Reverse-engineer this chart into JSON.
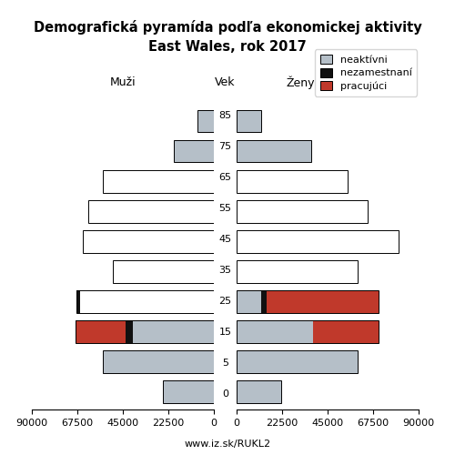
{
  "title_line1": "Demografická pyramída podľa ekonomickej aktivity",
  "title_line2": "East Wales, rok 2017",
  "label_muzi": "Muži",
  "label_vek": "Vek",
  "label_zeny": "Ženy",
  "footer": "www.iz.sk/RUKL2",
  "age_groups": [
    0,
    5,
    15,
    25,
    35,
    45,
    55,
    65,
    75,
    85
  ],
  "males_inactive": [
    25000,
    55000,
    40000,
    66000,
    50000,
    65000,
    62000,
    55000,
    20000,
    8000
  ],
  "males_unemployed": [
    0,
    0,
    3500,
    2000,
    0,
    0,
    0,
    0,
    0,
    0
  ],
  "males_employed": [
    0,
    0,
    25000,
    0,
    0,
    0,
    0,
    0,
    0,
    0
  ],
  "females_inactive": [
    22000,
    60000,
    38000,
    12000,
    60000,
    80000,
    65000,
    55000,
    37000,
    12000
  ],
  "females_unemployed": [
    0,
    0,
    0,
    3000,
    0,
    0,
    0,
    0,
    0,
    0
  ],
  "females_employed": [
    0,
    0,
    32000,
    55000,
    0,
    0,
    0,
    0,
    0,
    0
  ],
  "gray_fill_ages": [
    0,
    5,
    75,
    85
  ],
  "color_inactive": "#b5bfc8",
  "color_unemployed": "#111111",
  "color_employed": "#c0392b",
  "xlim": 90000,
  "bar_height": 0.75,
  "bg": "#ffffff",
  "legend_labels": [
    "neaktívni",
    "nezamestnaní",
    "pracujúci"
  ],
  "tick_fontsize": 8,
  "label_fontsize": 9,
  "title_fontsize": 10.5
}
